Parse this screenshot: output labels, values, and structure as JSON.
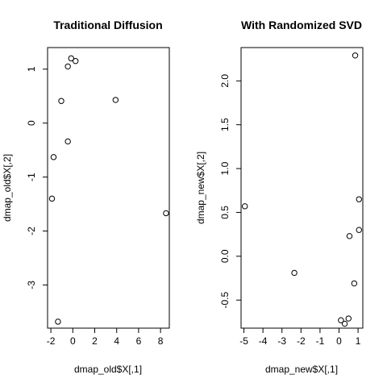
{
  "chart_data": [
    {
      "type": "scatter",
      "title": "Traditional Diffusion",
      "xlabel": "dmap_old$X[,1]",
      "ylabel": "dmap_old$X[,2]",
      "xlim": [
        -2.3,
        8.8
      ],
      "ylim": [
        -3.8,
        1.4
      ],
      "xticks": [
        -2,
        0,
        2,
        4,
        6,
        8
      ],
      "yticks": [
        -3,
        -2,
        -1,
        0,
        1
      ],
      "xtick_labels": [
        "-2",
        "0",
        "2",
        "4",
        "6",
        "8"
      ],
      "ytick_labels": [
        "-3",
        "-2",
        "-1",
        "0",
        "1"
      ],
      "grid": false,
      "points": [
        {
          "x": -1.9,
          "y": -1.4
        },
        {
          "x": -1.75,
          "y": -0.63
        },
        {
          "x": -1.35,
          "y": -3.68
        },
        {
          "x": -1.05,
          "y": 0.41
        },
        {
          "x": -0.45,
          "y": 1.05
        },
        {
          "x": -0.45,
          "y": -0.34
        },
        {
          "x": -0.15,
          "y": 1.2
        },
        {
          "x": 0.25,
          "y": 1.15
        },
        {
          "x": 3.9,
          "y": 0.43
        },
        {
          "x": 8.5,
          "y": -1.67
        }
      ]
    },
    {
      "type": "scatter",
      "title": "With Randomized SVD",
      "xlabel": "dmap_new$X[,1]",
      "ylabel": "dmap_new$X[,2]",
      "xlim": [
        -5.15,
        1.25
      ],
      "ylim": [
        -0.82,
        2.38
      ],
      "xticks": [
        -5,
        -4,
        -3,
        -2,
        -1,
        0,
        1
      ],
      "yticks": [
        -0.5,
        0.0,
        0.5,
        1.0,
        1.5,
        2.0
      ],
      "xtick_labels": [
        "-5",
        "-4",
        "-3",
        "-2",
        "-1",
        "0",
        "1"
      ],
      "ytick_labels": [
        "-0.5",
        "0.0",
        "0.5",
        "1.0",
        "1.5",
        "2.0"
      ],
      "grid": false,
      "points": [
        {
          "x": -4.95,
          "y": 0.57
        },
        {
          "x": -2.35,
          "y": -0.19
        },
        {
          "x": 0.1,
          "y": -0.73
        },
        {
          "x": 0.3,
          "y": -0.77
        },
        {
          "x": 0.5,
          "y": -0.71
        },
        {
          "x": 0.55,
          "y": 0.23
        },
        {
          "x": 0.8,
          "y": -0.31
        },
        {
          "x": 0.85,
          "y": 2.29
        },
        {
          "x": 1.05,
          "y": 0.65
        },
        {
          "x": 1.05,
          "y": 0.3
        }
      ]
    }
  ]
}
